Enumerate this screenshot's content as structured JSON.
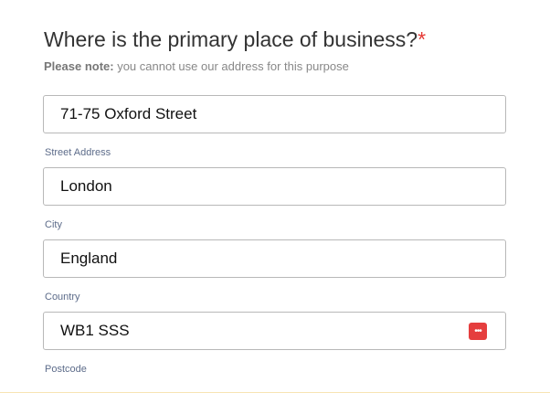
{
  "question": {
    "title": "Where is the primary place of business?",
    "required_mark": "*",
    "note_bold": "Please note:",
    "note_text": " you cannot use our address for this purpose"
  },
  "fields": [
    {
      "value": "71-75 Oxford Street",
      "label": "Street Address"
    },
    {
      "value": "London",
      "label": "City"
    },
    {
      "value": "England",
      "label": "Country"
    },
    {
      "value": "WB1 SSS",
      "label": "Postcode",
      "icon": "password-manager-icon",
      "icon_color": "#e53e3e"
    }
  ]
}
